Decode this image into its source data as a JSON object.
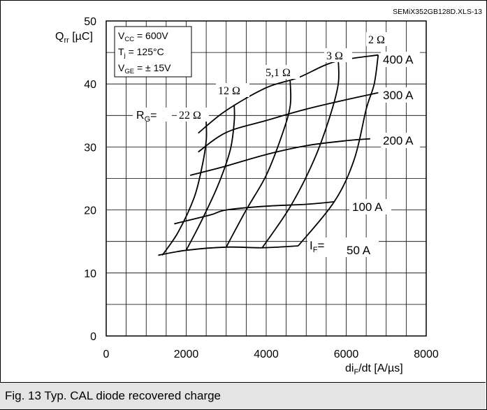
{
  "chart_data": {
    "type": "line",
    "file_id": "SEMiX352GB128D.XLS-13",
    "xlabel": "di",
    "xlabel_sub": "F",
    "xlabel_unit": "/dt [A/µs]",
    "ylabel": "Q",
    "ylabel_sub": "rr",
    "ylabel_unit": " [µC]",
    "xlim": [
      0,
      8000
    ],
    "ylim": [
      0,
      50
    ],
    "x_ticks": [
      "0",
      "2000",
      "4000",
      "6000",
      "8000"
    ],
    "y_ticks": [
      "0",
      "10",
      "20",
      "30",
      "40",
      "50"
    ],
    "grid": true,
    "conditions": {
      "vcc_label": "V",
      "vcc_sub": "CC",
      "vcc_value": " = 600V",
      "tj_label": "T",
      "tj_sub": "j",
      "tj_value": "   = 125°C",
      "vge_label": "V",
      "vge_sub": "GE",
      "vge_value": " = ± 15V"
    },
    "rg_prefix": "R",
    "rg_prefix_sub": "G",
    "rg_prefix_eq": "=",
    "if_prefix": "I",
    "if_prefix_sub": "F",
    "if_prefix_eq": "=",
    "current_series": [
      {
        "name": "50 A",
        "points": [
          [
            1300,
            12.8
          ],
          [
            2000,
            13.6
          ],
          [
            3000,
            14.1
          ],
          [
            3900,
            14.0
          ],
          [
            4800,
            14.3
          ]
        ]
      },
      {
        "name": "100 A",
        "points": [
          [
            1700,
            17.8
          ],
          [
            2600,
            19.2
          ],
          [
            3000,
            20.0
          ],
          [
            4000,
            20.6
          ],
          [
            5000,
            20.9
          ],
          [
            5700,
            21.3
          ]
        ]
      },
      {
        "name": "200 A",
        "points": [
          [
            2100,
            25.5
          ],
          [
            2900,
            26.8
          ],
          [
            4000,
            28.8
          ],
          [
            5000,
            30.2
          ],
          [
            6000,
            31.0
          ],
          [
            6600,
            31.3
          ]
        ]
      },
      {
        "name": "300 A",
        "points": [
          [
            2300,
            29.2
          ],
          [
            3000,
            32.3
          ],
          [
            4000,
            34.2
          ],
          [
            5000,
            36.0
          ],
          [
            6000,
            37.5
          ],
          [
            6800,
            38.6
          ]
        ]
      },
      {
        "name": "400 A",
        "points": [
          [
            2300,
            32.2
          ],
          [
            3000,
            35.8
          ],
          [
            4000,
            39.4
          ],
          [
            4800,
            41.0
          ],
          [
            5700,
            43.5
          ],
          [
            6800,
            44.6
          ]
        ]
      }
    ],
    "resistance_series": [
      {
        "name": "22 Ω",
        "points": [
          [
            1400,
            12.8
          ],
          [
            1800,
            16.5
          ],
          [
            2200,
            22.0
          ],
          [
            2400,
            27.0
          ],
          [
            2500,
            31.0
          ],
          [
            2500,
            34.0
          ]
        ]
      },
      {
        "name": "12 Ω",
        "points": [
          [
            2000,
            13.6
          ],
          [
            2400,
            18.5
          ],
          [
            2800,
            24.0
          ],
          [
            3100,
            29.5
          ],
          [
            3200,
            34.0
          ],
          [
            3200,
            36.7
          ]
        ]
      },
      {
        "name": "5,1 Ω",
        "points": [
          [
            3000,
            14.1
          ],
          [
            3500,
            20.0
          ],
          [
            4000,
            25.5
          ],
          [
            4400,
            32.0
          ],
          [
            4600,
            36.5
          ],
          [
            4600,
            40.5
          ]
        ]
      },
      {
        "name": "3 Ω",
        "points": [
          [
            3900,
            14.0
          ],
          [
            4600,
            20.5
          ],
          [
            5200,
            28.0
          ],
          [
            5600,
            35.0
          ],
          [
            5800,
            40.0
          ],
          [
            5800,
            44.0
          ]
        ]
      },
      {
        "name": "2 Ω",
        "points": [
          [
            4800,
            14.3
          ],
          [
            5700,
            21.3
          ],
          [
            6200,
            28.0
          ],
          [
            6500,
            36.0
          ],
          [
            6700,
            40.0
          ],
          [
            6800,
            44.6
          ]
        ]
      }
    ],
    "color": "#000000"
  },
  "caption": "Fig. 13 Typ. CAL diode recovered charge"
}
